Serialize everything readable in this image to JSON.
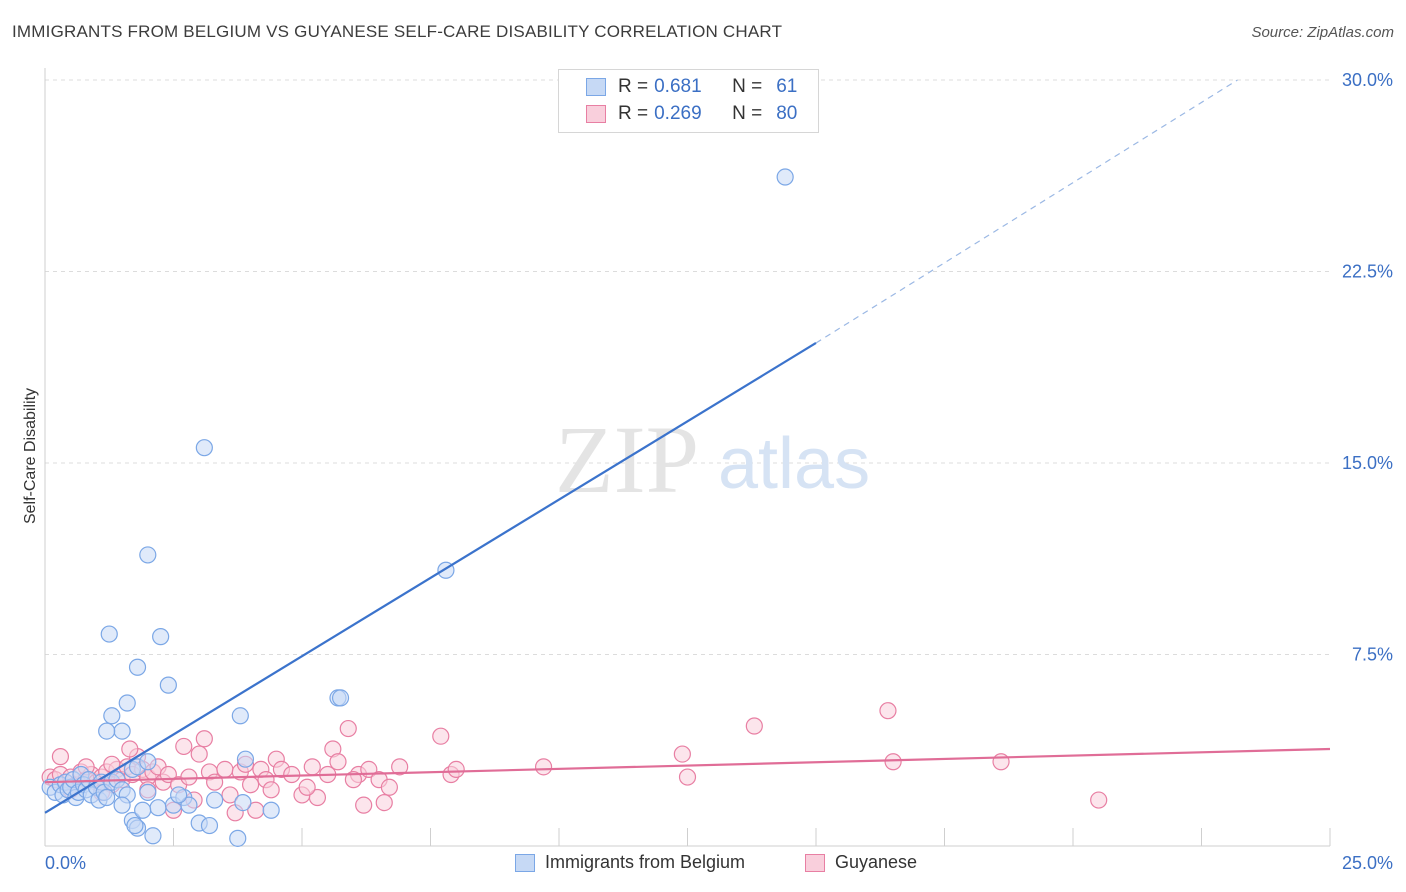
{
  "title": "IMMIGRANTS FROM BELGIUM VS GUYANESE SELF-CARE DISABILITY CORRELATION CHART",
  "source": "Source: ZipAtlas.com",
  "watermark": {
    "zip": "ZIP",
    "atlas": "atlas"
  },
  "legend": {
    "r_label": "R =",
    "n_label": "N =",
    "series": [
      {
        "r": "0.681",
        "n": "61",
        "color": "#7ba7e6",
        "fill": "#c6d9f5"
      },
      {
        "r": "0.269",
        "n": "80",
        "color": "#e87fa3",
        "fill": "#f9cfdc"
      }
    ]
  },
  "chart_data": {
    "type": "scatter",
    "title": "IMMIGRANTS FROM BELGIUM VS GUYANESE SELF-CARE DISABILITY CORRELATION CHART",
    "xlabel": "",
    "ylabel": "Self-Care Disability",
    "xlim": [
      0,
      25
    ],
    "ylim": [
      0,
      30
    ],
    "x_tick_labels": [
      "0.0%",
      "25.0%"
    ],
    "y_ticks": [
      7.5,
      15.0,
      22.5,
      30.0
    ],
    "y_tick_labels": [
      "7.5%",
      "15.0%",
      "22.5%",
      "30.0%"
    ],
    "grid": true,
    "series": [
      {
        "name": "Immigrants from Belgium",
        "color": "#3b73cc",
        "marker_fill": "#c6d9f5",
        "marker_edge": "#7ba7e6",
        "trend": {
          "x0": 0,
          "y0": 1.3,
          "x1": 15.0,
          "y1": 19.7,
          "dash_x1": 23.2,
          "dash_y1": 30.0
        },
        "points": [
          [
            0.1,
            2.3
          ],
          [
            0.2,
            2.1
          ],
          [
            0.3,
            2.4
          ],
          [
            0.35,
            2.0
          ],
          [
            0.4,
            2.5
          ],
          [
            0.45,
            2.2
          ],
          [
            0.5,
            2.3
          ],
          [
            0.55,
            2.6
          ],
          [
            0.6,
            1.9
          ],
          [
            0.65,
            2.1
          ],
          [
            0.7,
            2.8
          ],
          [
            0.75,
            2.4
          ],
          [
            0.8,
            2.2
          ],
          [
            0.85,
            2.6
          ],
          [
            0.9,
            2.0
          ],
          [
            1.0,
            2.3
          ],
          [
            1.05,
            1.8
          ],
          [
            1.1,
            2.5
          ],
          [
            1.15,
            2.1
          ],
          [
            1.2,
            1.9
          ],
          [
            1.3,
            2.5
          ],
          [
            1.4,
            2.6
          ],
          [
            1.5,
            2.2
          ],
          [
            1.6,
            2.0
          ],
          [
            1.7,
            3.0
          ],
          [
            1.8,
            3.1
          ],
          [
            2.0,
            3.3
          ],
          [
            1.5,
            4.5
          ],
          [
            1.3,
            5.1
          ],
          [
            1.2,
            4.5
          ],
          [
            1.6,
            5.6
          ],
          [
            1.8,
            7.0
          ],
          [
            1.25,
            8.3
          ],
          [
            2.0,
            11.4
          ],
          [
            2.25,
            8.2
          ],
          [
            2.4,
            6.3
          ],
          [
            3.1,
            15.6
          ],
          [
            3.8,
            5.1
          ],
          [
            3.9,
            3.4
          ],
          [
            5.7,
            5.8
          ],
          [
            5.75,
            5.8
          ],
          [
            7.8,
            10.8
          ],
          [
            14.4,
            26.2
          ],
          [
            1.5,
            1.6
          ],
          [
            1.7,
            1.0
          ],
          [
            1.8,
            0.7
          ],
          [
            2.1,
            0.4
          ],
          [
            2.2,
            1.5
          ],
          [
            2.5,
            1.6
          ],
          [
            2.7,
            1.9
          ],
          [
            2.8,
            1.6
          ],
          [
            3.0,
            0.9
          ],
          [
            3.2,
            0.8
          ],
          [
            3.75,
            0.3
          ],
          [
            3.85,
            1.7
          ],
          [
            4.4,
            1.4
          ],
          [
            2.0,
            2.1
          ],
          [
            2.6,
            2.0
          ],
          [
            1.9,
            1.4
          ],
          [
            3.3,
            1.8
          ],
          [
            1.75,
            0.8
          ]
        ]
      },
      {
        "name": "Guyanese",
        "color": "#e06d97",
        "marker_fill": "#f9cfdc",
        "marker_edge": "#e87fa3",
        "trend": {
          "x0": 0,
          "y0": 2.5,
          "x1": 25.0,
          "y1": 3.8
        },
        "points": [
          [
            0.1,
            2.7
          ],
          [
            0.2,
            2.6
          ],
          [
            0.3,
            2.8
          ],
          [
            0.4,
            2.5
          ],
          [
            0.5,
            2.7
          ],
          [
            0.6,
            2.4
          ],
          [
            0.7,
            2.9
          ],
          [
            0.8,
            2.6
          ],
          [
            0.9,
            2.8
          ],
          [
            1.0,
            2.5
          ],
          [
            1.1,
            2.7
          ],
          [
            1.2,
            2.9
          ],
          [
            1.3,
            2.4
          ],
          [
            1.4,
            3.0
          ],
          [
            1.5,
            2.6
          ],
          [
            1.6,
            3.1
          ],
          [
            1.7,
            2.8
          ],
          [
            1.8,
            3.5
          ],
          [
            1.65,
            3.8
          ],
          [
            1.9,
            3.0
          ],
          [
            2.0,
            2.7
          ],
          [
            2.1,
            2.9
          ],
          [
            2.2,
            3.1
          ],
          [
            2.3,
            2.5
          ],
          [
            2.4,
            2.8
          ],
          [
            2.6,
            2.4
          ],
          [
            2.7,
            3.9
          ],
          [
            2.8,
            2.7
          ],
          [
            3.0,
            3.6
          ],
          [
            3.1,
            4.2
          ],
          [
            3.2,
            2.9
          ],
          [
            3.3,
            2.5
          ],
          [
            3.5,
            3.0
          ],
          [
            3.7,
            1.3
          ],
          [
            3.8,
            2.9
          ],
          [
            3.9,
            3.2
          ],
          [
            4.0,
            2.4
          ],
          [
            4.2,
            3.0
          ],
          [
            4.3,
            2.6
          ],
          [
            4.5,
            3.4
          ],
          [
            4.6,
            3.0
          ],
          [
            4.8,
            2.8
          ],
          [
            5.0,
            2.0
          ],
          [
            5.2,
            3.1
          ],
          [
            5.3,
            1.9
          ],
          [
            5.5,
            2.8
          ],
          [
            5.6,
            3.8
          ],
          [
            5.7,
            3.3
          ],
          [
            5.9,
            4.6
          ],
          [
            6.1,
            2.8
          ],
          [
            6.3,
            3.0
          ],
          [
            6.5,
            2.6
          ],
          [
            6.7,
            2.3
          ],
          [
            6.9,
            3.1
          ],
          [
            7.7,
            4.3
          ],
          [
            7.9,
            2.8
          ],
          [
            8.0,
            3.0
          ],
          [
            9.7,
            3.1
          ],
          [
            12.4,
            3.6
          ],
          [
            12.5,
            2.7
          ],
          [
            13.8,
            4.7
          ],
          [
            16.4,
            5.3
          ],
          [
            16.5,
            3.3
          ],
          [
            18.6,
            3.3
          ],
          [
            20.5,
            1.8
          ],
          [
            0.3,
            3.5
          ],
          [
            0.5,
            2.2
          ],
          [
            1.3,
            3.2
          ],
          [
            2.0,
            2.2
          ],
          [
            2.5,
            1.4
          ],
          [
            2.9,
            1.8
          ],
          [
            3.6,
            2.0
          ],
          [
            4.1,
            1.4
          ],
          [
            4.4,
            2.2
          ],
          [
            5.1,
            2.3
          ],
          [
            6.0,
            2.6
          ],
          [
            6.2,
            1.6
          ],
          [
            6.6,
            1.7
          ],
          [
            0.8,
            3.1
          ],
          [
            1.1,
            2.1
          ]
        ]
      }
    ]
  },
  "bottom_legend": [
    {
      "label": "Immigrants from Belgium"
    },
    {
      "label": "Guyanese"
    }
  ]
}
